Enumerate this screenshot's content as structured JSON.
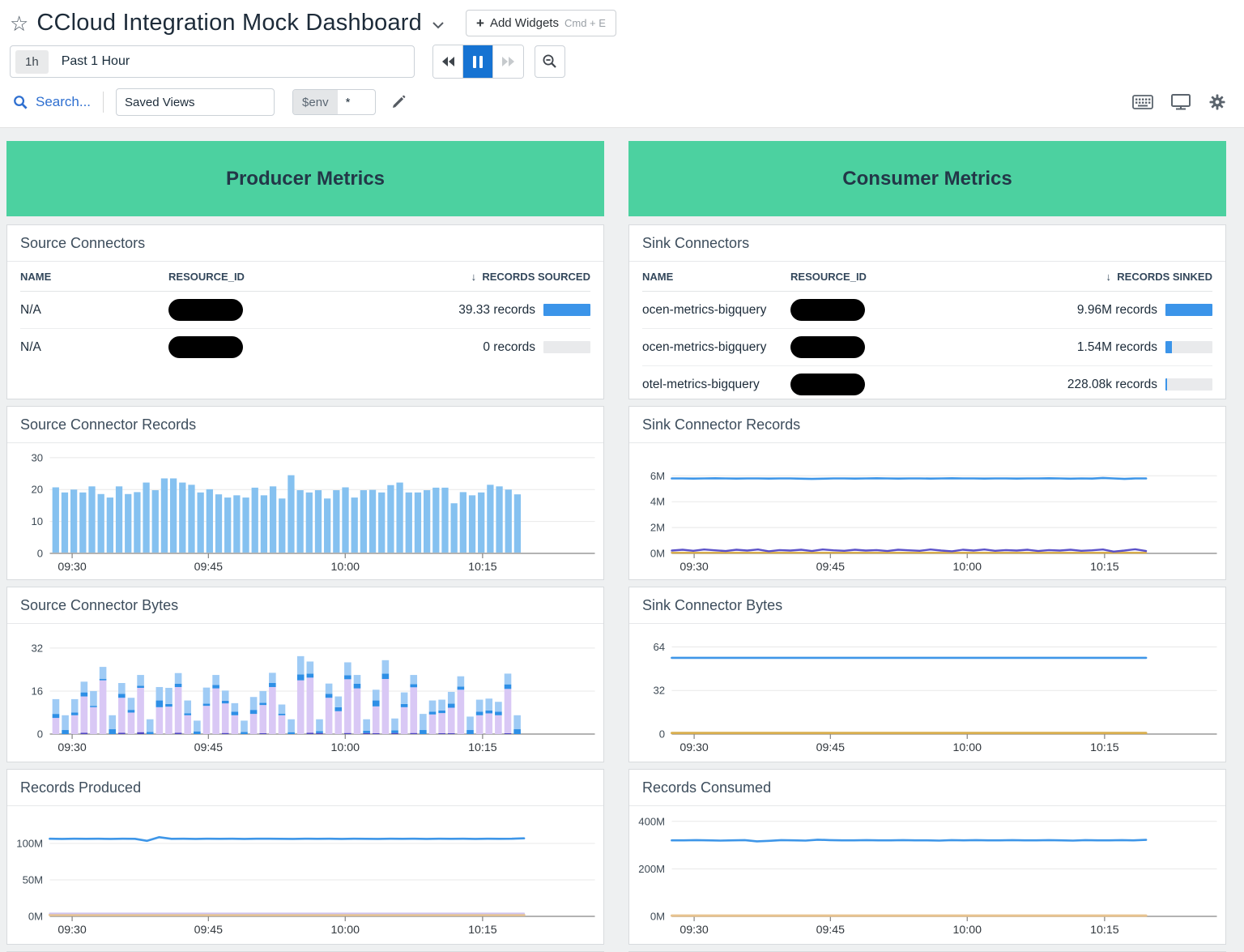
{
  "header": {
    "title": "CCloud Integration Mock Dashboard",
    "add_widgets_label": "Add Widgets",
    "add_widgets_shortcut": "Cmd + E",
    "add_widgets_plus": "+"
  },
  "toolbar": {
    "range_badge": "1h",
    "range_label": "Past 1 Hour",
    "search_label": "Search...",
    "saved_views_label": "Saved Views",
    "env_var": "$env",
    "env_value": "*"
  },
  "producer": {
    "banner": "Producer Metrics"
  },
  "consumer": {
    "banner": "Consumer Metrics"
  },
  "colors": {
    "banner_green": "#4cd1a0",
    "table_bar_blue": "#3b94e9",
    "table_bar_track": "#e9eaec",
    "bar_light_blue": "#85c1f0",
    "line_blue": "#3e96e8",
    "line_purple": "#5b51c8",
    "line_gold": "#d9ae4e",
    "line_tan": "#e8c38f",
    "line_lavender": "#cfc4ee",
    "stack_indigo": "#4f46c2",
    "stack_lavender": "#d9c8f5",
    "stack_midblue": "#2e8fe6",
    "stack_lightblue": "#9fcbf5",
    "pause_button_blue": "#1673d2"
  },
  "tables": {
    "source_connectors": {
      "title": "Source Connectors",
      "name_header": "NAME",
      "resource_header": "RESOURCE_ID",
      "sort_arrow": "↓",
      "sort_header": "RECORDS SOURCED",
      "rows": [
        {
          "name": "N/A",
          "resource_redacted": true,
          "value": "39.33 records",
          "bar_pct": 100
        },
        {
          "name": "N/A",
          "resource_redacted": true,
          "value": "0 records",
          "bar_pct": 0
        }
      ]
    },
    "sink_connectors": {
      "title": "Sink Connectors",
      "name_header": "NAME",
      "resource_header": "RESOURCE_ID",
      "sort_arrow": "↓",
      "sort_header": "RECORDS SINKED",
      "rows": [
        {
          "name": "ocen-metrics-bigquery",
          "resource_redacted": true,
          "value": "9.96M records",
          "bar_pct": 100
        },
        {
          "name": "ocen-metrics-bigquery",
          "resource_redacted": true,
          "value": "1.54M records",
          "bar_pct": 13
        },
        {
          "name": "otel-metrics-bigquery",
          "resource_redacted": true,
          "value": "228.08k records",
          "bar_pct": 4
        }
      ]
    }
  },
  "chart_data": [
    {
      "id": "source_connector_records",
      "title": "Source Connector Records",
      "type": "bar",
      "ylim": [
        0,
        32
      ],
      "yticks": [
        {
          "v": 0,
          "label": "0"
        },
        {
          "v": 10,
          "label": "10"
        },
        {
          "v": 20,
          "label": "20"
        },
        {
          "v": 30,
          "label": "30"
        }
      ],
      "xticks": [
        "09:30",
        "09:45",
        "10:00",
        "10:15"
      ],
      "bar_color": "#85c1f0",
      "values": [
        20.7,
        19.1,
        20,
        19.1,
        21,
        18.6,
        17.5,
        21,
        18.6,
        19.2,
        22.2,
        19.8,
        23.5,
        23.5,
        22.2,
        21.5,
        19.1,
        20.1,
        18.5,
        17.5,
        18.2,
        17.5,
        20.6,
        18.2,
        21,
        17.2,
        24.5,
        19.8,
        19.1,
        19.8,
        17.2,
        19.8,
        20.7,
        17.5,
        19.8,
        19.9,
        19.1,
        21.4,
        22.2,
        19.1,
        19.1,
        19.8,
        20.6,
        20.6,
        15.7,
        19.2,
        18.2,
        19.1,
        21.5,
        21,
        20,
        18.5
      ]
    },
    {
      "id": "source_connector_bytes",
      "title": "Source Connector Bytes",
      "type": "stacked_bar",
      "ylim": [
        0,
        38
      ],
      "yticks": [
        {
          "v": 0,
          "label": "0"
        },
        {
          "v": 16,
          "label": "16"
        },
        {
          "v": 32,
          "label": "32"
        }
      ],
      "xticks": [
        "09:30",
        "09:45",
        "10:00",
        "10:15"
      ],
      "stack_colors": [
        "#4f46c2",
        "#d9c8f5",
        "#2e8fe6",
        "#9fcbf5"
      ],
      "stack_names": [
        "indigo",
        "lavender",
        "mid-blue",
        "light-blue"
      ],
      "segments": [
        [
          0,
          6,
          1.5,
          5.5
        ],
        [
          0,
          0,
          1.5,
          5.5
        ],
        [
          0,
          7,
          1,
          5
        ],
        [
          0.5,
          13.5,
          1.5,
          4
        ],
        [
          0,
          10,
          0.5,
          5.5
        ],
        [
          0,
          20,
          0.5,
          4.5
        ],
        [
          0,
          0,
          1.8,
          5.2
        ],
        [
          0.5,
          13,
          1.5,
          4
        ],
        [
          0,
          8,
          1,
          4.5
        ],
        [
          0.7,
          16.5,
          0.8,
          4
        ],
        [
          0,
          0,
          0.8,
          4.7
        ],
        [
          0,
          10,
          2.5,
          5
        ],
        [
          0,
          10.2,
          1,
          6
        ],
        [
          0.5,
          17,
          1.2,
          4
        ],
        [
          0,
          7,
          0.7,
          4.8
        ],
        [
          0,
          0,
          1,
          4
        ],
        [
          0,
          10.5,
          0.8,
          6
        ],
        [
          0,
          17,
          1.3,
          3.7
        ],
        [
          0.4,
          11,
          1,
          3.8
        ],
        [
          0,
          7,
          1.3,
          3.2
        ],
        [
          0,
          0,
          0.8,
          4.2
        ],
        [
          0,
          7.5,
          1.5,
          4.8
        ],
        [
          0.3,
          10.5,
          0.8,
          4.4
        ],
        [
          0,
          17.5,
          1.5,
          3.8
        ],
        [
          0,
          7,
          0.6,
          3.4
        ],
        [
          0,
          0,
          0.7,
          4.8
        ],
        [
          0,
          20,
          2.2,
          6.8
        ],
        [
          0.5,
          20.5,
          1.5,
          4.5
        ],
        [
          0.4,
          0,
          0.7,
          4.4
        ],
        [
          0,
          13.5,
          1.5,
          3.8
        ],
        [
          0,
          8.5,
          1.5,
          4
        ],
        [
          0.4,
          20,
          1.5,
          4.8
        ],
        [
          0,
          17,
          1.7,
          3.3
        ],
        [
          0.4,
          0,
          0.8,
          4.3
        ],
        [
          0.3,
          10,
          2.2,
          4
        ],
        [
          0,
          20.5,
          2,
          5
        ],
        [
          0.4,
          0,
          1,
          4.4
        ],
        [
          0,
          10,
          1.2,
          4.3
        ],
        [
          0.4,
          17,
          1.2,
          3.4
        ],
        [
          0,
          0,
          1.5,
          6
        ],
        [
          0,
          7.3,
          1,
          4.2
        ],
        [
          0.3,
          7.5,
          1,
          4
        ],
        [
          0.3,
          9.5,
          1.5,
          4.4
        ],
        [
          0,
          16.5,
          1.2,
          3.8
        ],
        [
          0,
          0,
          1.5,
          5
        ],
        [
          0,
          7,
          1.3,
          4.5
        ],
        [
          0,
          7.7,
          1.1,
          4.4
        ],
        [
          0,
          7,
          1.3,
          3.7
        ],
        [
          0.3,
          16.5,
          1.7,
          4
        ],
        [
          0,
          0,
          1.8,
          5.2
        ]
      ]
    },
    {
      "id": "records_produced",
      "title": "Records Produced",
      "type": "line",
      "ylim": [
        0,
        140
      ],
      "yticks": [
        {
          "v": 0,
          "label": "0M"
        },
        {
          "v": 50,
          "label": "50M"
        },
        {
          "v": 100,
          "label": "100M"
        }
      ],
      "xticks": [
        "09:30",
        "09:45",
        "10:00",
        "10:15"
      ],
      "series": [
        {
          "name": "tan",
          "color": "#e8c38f",
          "width": 3,
          "points": {
            "value": 2,
            "n": 40
          }
        },
        {
          "name": "lavender",
          "color": "#cfc4ee",
          "width": 2,
          "points": {
            "value": 4,
            "n": 40
          }
        },
        {
          "name": "blue",
          "color": "#3e96e8",
          "width": 2.6,
          "points": [
            106.5,
            106.2,
            106.4,
            106.3,
            106.5,
            106.2,
            106.4,
            106.3,
            103.5,
            108.5,
            106.3,
            106.4,
            106.2,
            106.5,
            106.3,
            106.4,
            106.2,
            106.4,
            106.5,
            106.3,
            106.2,
            106.4,
            106.3,
            106.5,
            106.2,
            106.4,
            106.3,
            106.2,
            106.5,
            106.3,
            106.4,
            106.2,
            106.4,
            106.3,
            106.5,
            106.2,
            106.4,
            106.3,
            106.5,
            107.0
          ]
        }
      ]
    },
    {
      "id": "sink_connector_records",
      "title": "Sink Connector Records",
      "type": "line",
      "ylim": [
        0,
        7.9
      ],
      "yticks": [
        {
          "v": 0,
          "label": "0M"
        },
        {
          "v": 2,
          "label": "2M"
        },
        {
          "v": 4,
          "label": "4M"
        },
        {
          "v": 6,
          "label": "6M"
        }
      ],
      "xticks": [
        "09:30",
        "09:45",
        "10:00",
        "10:15"
      ],
      "series": [
        {
          "name": "gold",
          "color": "#d9ae4e",
          "width": 2.4,
          "points": {
            "value": 0.05,
            "n": 45
          }
        },
        {
          "name": "purple",
          "color": "#5b51c8",
          "width": 2.4,
          "points": [
            0.22,
            0.28,
            0.2,
            0.3,
            0.24,
            0.18,
            0.28,
            0.22,
            0.3,
            0.16,
            0.26,
            0.22,
            0.28,
            0.18,
            0.3,
            0.24,
            0.2,
            0.28,
            0.22,
            0.26,
            0.18,
            0.28,
            0.24,
            0.2,
            0.3,
            0.22,
            0.16,
            0.28,
            0.22,
            0.3,
            0.2,
            0.26,
            0.22,
            0.28,
            0.18,
            0.26,
            0.22,
            0.28,
            0.2,
            0.24,
            0.3,
            0.14,
            0.22,
            0.32,
            0.18
          ]
        },
        {
          "name": "blue",
          "color": "#3e96e8",
          "width": 2.6,
          "points": [
            5.8,
            5.8,
            5.79,
            5.8,
            5.81,
            5.8,
            5.79,
            5.8,
            5.8,
            5.79,
            5.8,
            5.8,
            5.78,
            5.76,
            5.78,
            5.8,
            5.8,
            5.79,
            5.8,
            5.81,
            5.8,
            5.79,
            5.8,
            5.8,
            5.79,
            5.8,
            5.81,
            5.8,
            5.8,
            5.79,
            5.8,
            5.8,
            5.79,
            5.8,
            5.8,
            5.81,
            5.8,
            5.78,
            5.8,
            5.79,
            5.84,
            5.8,
            5.76,
            5.8,
            5.8
          ]
        }
      ]
    },
    {
      "id": "sink_connector_bytes",
      "title": "Sink Connector Bytes",
      "type": "line",
      "ylim": [
        0,
        75
      ],
      "yticks": [
        {
          "v": 0,
          "label": "0"
        },
        {
          "v": 32,
          "label": "32"
        },
        {
          "v": 64,
          "label": "64"
        }
      ],
      "xticks": [
        "09:30",
        "09:45",
        "10:00",
        "10:15"
      ],
      "series": [
        {
          "name": "gold",
          "color": "#d9ae4e",
          "width": 2.8,
          "points": {
            "value": 0.8,
            "n": 45
          }
        },
        {
          "name": "blue",
          "color": "#3e96e8",
          "width": 2.6,
          "points": {
            "value": 56,
            "n": 45
          }
        }
      ]
    },
    {
      "id": "records_consumed",
      "title": "Records Consumed",
      "type": "line",
      "ylim": [
        0,
        430
      ],
      "yticks": [
        {
          "v": 0,
          "label": "0M"
        },
        {
          "v": 200,
          "label": "200M"
        },
        {
          "v": 400,
          "label": "400M"
        }
      ],
      "xticks": [
        "09:30",
        "09:45",
        "10:00",
        "10:15"
      ],
      "series": [
        {
          "name": "tan",
          "color": "#e8c38f",
          "width": 3,
          "points": {
            "value": 3,
            "n": 40
          }
        },
        {
          "name": "blue",
          "color": "#3e96e8",
          "width": 2.6,
          "points": [
            320,
            320,
            321,
            320,
            319,
            320,
            321,
            316,
            318,
            321,
            320,
            319,
            323,
            321,
            320,
            320,
            321,
            320,
            320,
            321,
            320,
            320,
            319,
            321,
            320,
            321,
            320,
            320,
            321,
            320,
            320,
            321,
            320,
            319,
            321,
            320,
            320,
            321,
            320,
            322
          ]
        }
      ]
    }
  ]
}
